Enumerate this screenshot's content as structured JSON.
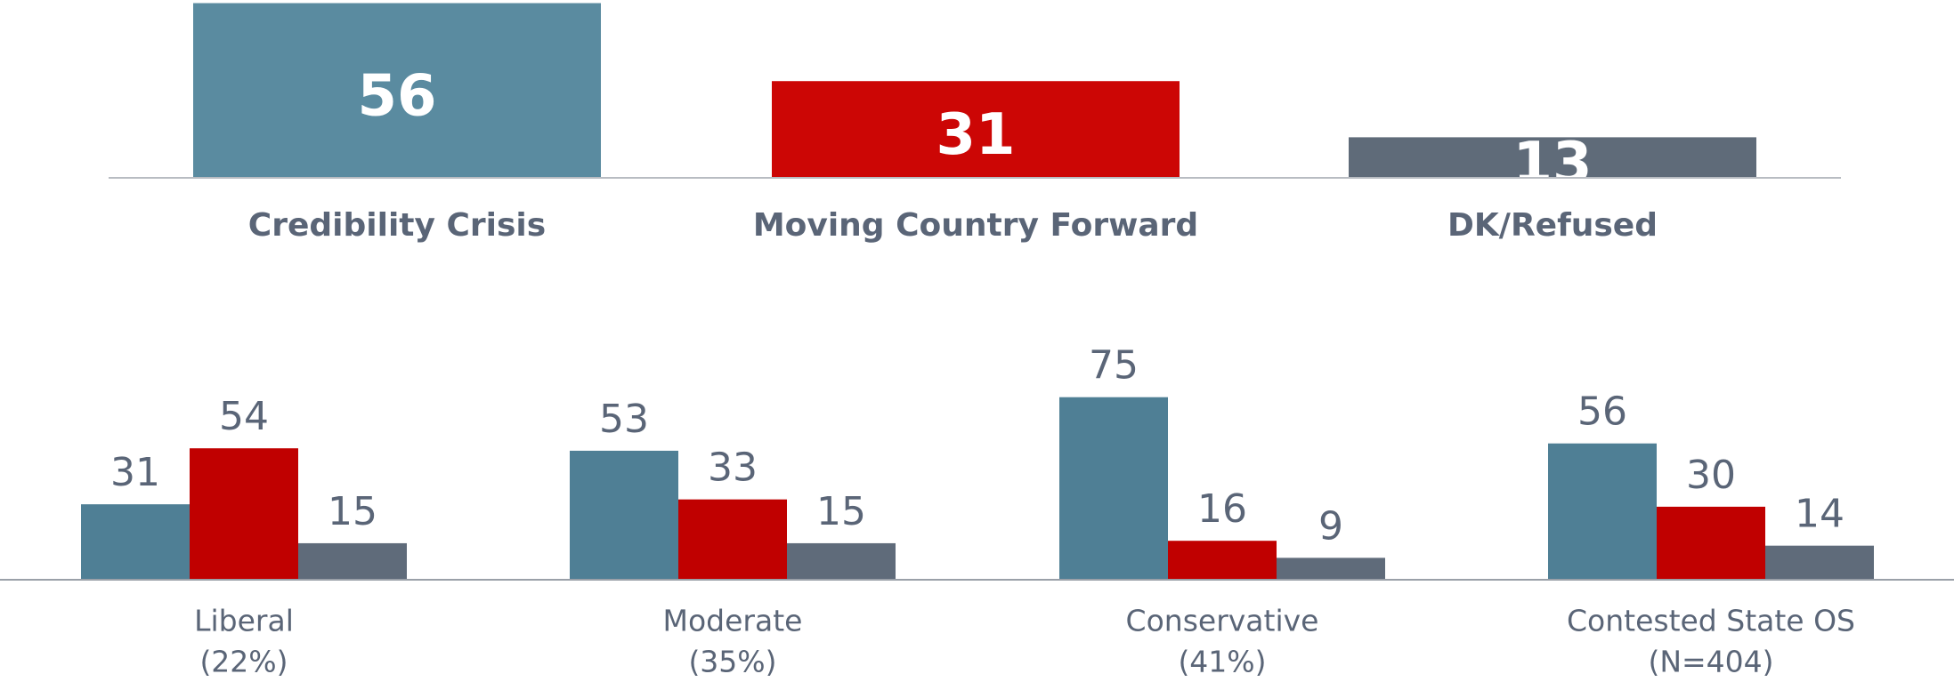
{
  "chart_data": [
    {
      "type": "bar",
      "categories": [
        "Credibility Crisis",
        "Moving Country Forward",
        "DK/Refused"
      ],
      "values": [
        56,
        31,
        13
      ],
      "colors": [
        "#5a8ba0",
        "#cc0605",
        "#5f6b79"
      ],
      "ylim": [
        0,
        57
      ]
    },
    {
      "type": "grouped_bar",
      "categories": [
        [
          "Liberal",
          "(22%)"
        ],
        [
          "Moderate",
          "(35%)"
        ],
        [
          "Conservative",
          "(41%)"
        ],
        [
          "Contested State OS",
          "(N=404)"
        ]
      ],
      "series": [
        {
          "color": "#4f7f95",
          "values": [
            31,
            53,
            75,
            56
          ]
        },
        {
          "color": "#c00000",
          "values": [
            54,
            33,
            16,
            30
          ]
        },
        {
          "color": "#5f6b7a",
          "values": [
            15,
            15,
            9,
            14
          ]
        }
      ],
      "ylim": [
        0,
        80
      ]
    }
  ]
}
